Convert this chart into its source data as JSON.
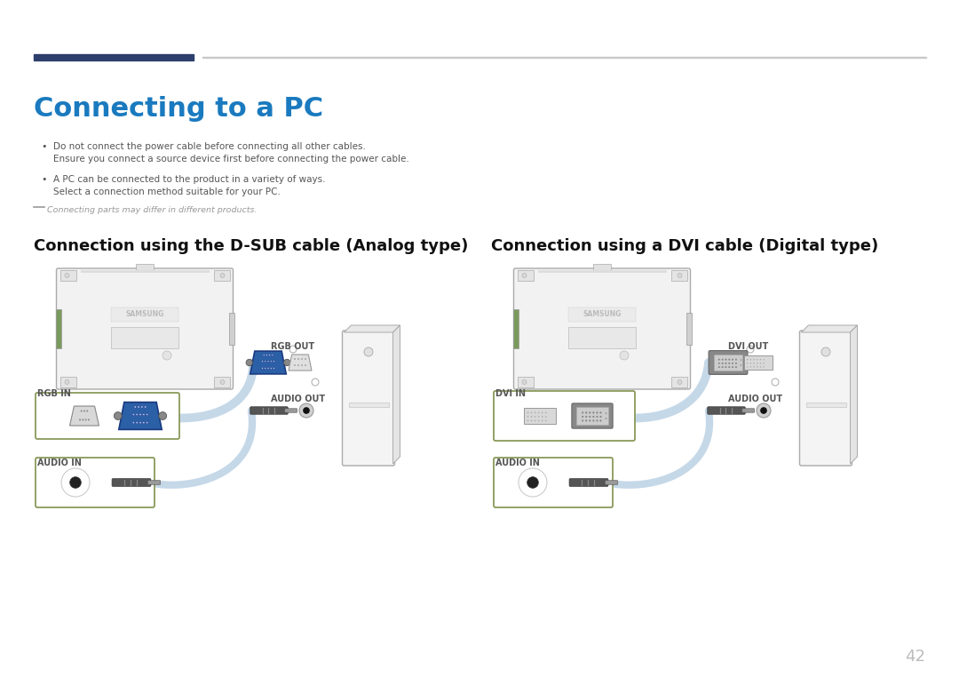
{
  "bg_color": "#ffffff",
  "title": "Connecting to a PC",
  "title_color": "#1a7abf",
  "title_fontsize": 22,
  "header_bar_color1": "#2c3e6b",
  "header_bar_color2": "#c8c8c8",
  "bullet1_line1": "Do not connect the power cable before connecting all other cables.",
  "bullet1_line2": "Ensure you connect a source device first before connecting the power cable.",
  "bullet2_line1": "A PC can be connected to the product in a variety of ways.",
  "bullet2_line2": "Select a connection method suitable for your PC.",
  "note_dash": "—",
  "note_text": "Connecting parts may differ in different products.",
  "section1_title": "Connection using the D-SUB cable (Analog type)",
  "section2_title": "Connection using a DVI cable (Digital type)",
  "section_title_fontsize": 13,
  "label_rgb_out": "RGB OUT",
  "label_rgb_in": "RGB IN",
  "label_audio_out_left": "AUDIO OUT",
  "label_audio_in_left": "AUDIO IN",
  "label_dvi_out": "DVI OUT",
  "label_dvi_in": "DVI IN",
  "label_audio_out_right": "AUDIO OUT",
  "label_audio_in_right": "AUDIO IN",
  "page_number": "42",
  "connector_blue_color": "#2b5fa6",
  "connector_blue_dark": "#1a3a80",
  "connector_gray_color": "#777777",
  "connector_gray_dark": "#555555",
  "cable_color": "#c5d8e8",
  "box_border_color": "#8a9a5b",
  "samsung_text_color": "#bbbbbb",
  "label_color": "#555555",
  "note_color": "#999999",
  "body_text_color": "#555555",
  "body_fontsize": 7.5,
  "monitor_face_color": "#f2f2f2",
  "monitor_edge_color": "#aaaaaa",
  "pc_face_color": "#f4f4f4",
  "pc_side_color": "#e4e4e4"
}
